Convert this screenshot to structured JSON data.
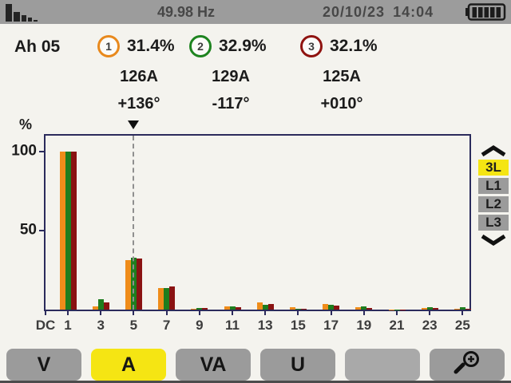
{
  "top_bar": {
    "frequency": "49.98 Hz",
    "date": "20/10/23",
    "time": "14:04",
    "mode_icon": "harmonics-bars-icon",
    "battery_icon": "battery-full-icon",
    "battery_bars": 5
  },
  "readings": {
    "harmonic_label": "Ah 05",
    "phases": [
      {
        "id": "1",
        "ring_color": "#e8891d",
        "percent": "31.4%",
        "current": "126A",
        "phase_angle": "+136°"
      },
      {
        "id": "2",
        "ring_color": "#1e8420",
        "percent": "32.9%",
        "current": "129A",
        "phase_angle": "-117°"
      },
      {
        "id": "3",
        "ring_color": "#8f1310",
        "percent": "32.1%",
        "current": "125A",
        "phase_angle": "+010°"
      }
    ]
  },
  "chart_data": {
    "type": "bar",
    "title": "",
    "ylabel": "%",
    "xlabel": "",
    "ylim": [
      0,
      110
    ],
    "yticks": [
      50,
      100
    ],
    "grid": false,
    "legend_position": "none",
    "categories": [
      "DC",
      "1",
      "3",
      "5",
      "7",
      "9",
      "11",
      "13",
      "15",
      "17",
      "19",
      "21",
      "23",
      "25"
    ],
    "series": [
      {
        "name": "Phase 1",
        "color": "#ef8c1a",
        "values": [
          0,
          100,
          2.0,
          31.4,
          13.5,
          0.5,
          2.0,
          4.5,
          1.5,
          3.6,
          1.5,
          0.2,
          0.8,
          0.4
        ]
      },
      {
        "name": "Phase 2",
        "color": "#1e7d1e",
        "values": [
          0,
          100,
          6.5,
          32.9,
          13.5,
          1.0,
          2.2,
          3.0,
          0.5,
          3.0,
          2.0,
          0.2,
          1.3,
          1.3
        ]
      },
      {
        "name": "Phase 3",
        "color": "#8a1212",
        "values": [
          0,
          100,
          4.5,
          32.1,
          14.5,
          0.8,
          1.5,
          3.5,
          0.6,
          2.5,
          0.8,
          0.2,
          0.8,
          0.5
        ]
      }
    ],
    "cursor_index": 3,
    "cursor_category": "5"
  },
  "phase_selector": {
    "up_icon": "chevron-up-icon",
    "down_icon": "chevron-down-icon",
    "options": [
      {
        "label": "3L",
        "selected": true
      },
      {
        "label": "L1",
        "selected": false
      },
      {
        "label": "L2",
        "selected": false
      },
      {
        "label": "L3",
        "selected": false
      }
    ]
  },
  "bottom_bar": {
    "buttons": [
      {
        "label": "V",
        "active": false
      },
      {
        "label": "A",
        "active": true
      },
      {
        "label": "VA",
        "active": false
      },
      {
        "label": "U",
        "active": false
      },
      {
        "label": "",
        "active": false
      },
      {
        "label": "",
        "active": false,
        "icon": "zoom-in-icon"
      }
    ]
  },
  "colors": {
    "accent_yellow": "#f5e513",
    "phase1_orange": "#ef8c1a",
    "phase2_green": "#1e7d1e",
    "phase3_red": "#8a1212",
    "chart_border_navy": "#2b2b5c",
    "top_bar_gray": "#9c9c9c",
    "button_gray": "#9b9b9b",
    "screen_bg": "#f4f3ee"
  }
}
